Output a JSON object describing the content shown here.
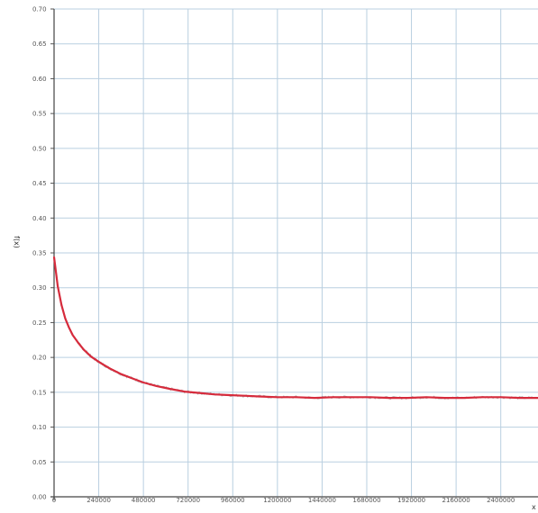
{
  "chart_data": {
    "type": "line",
    "title": "",
    "ylabel": "f(x)",
    "xlabel": "x",
    "xlim": [
      0,
      2600000
    ],
    "ylim": [
      0.0,
      0.7
    ],
    "grid": true,
    "legend": "none",
    "y_ticks": [
      {
        "value": 0.0,
        "label": "0.00"
      },
      {
        "value": 0.05,
        "label": "0.05"
      },
      {
        "value": 0.1,
        "label": "0.10"
      },
      {
        "value": 0.15,
        "label": "0.15"
      },
      {
        "value": 0.2,
        "label": "0.20"
      },
      {
        "value": 0.25,
        "label": "0.25"
      },
      {
        "value": 0.3,
        "label": "0.30"
      },
      {
        "value": 0.35,
        "label": "0.35"
      },
      {
        "value": 0.4,
        "label": "0.40"
      },
      {
        "value": 0.45,
        "label": "0.45"
      },
      {
        "value": 0.5,
        "label": "0.50"
      },
      {
        "value": 0.55,
        "label": "0.55"
      },
      {
        "value": 0.6,
        "label": "0.60"
      },
      {
        "value": 0.65,
        "label": "0.65"
      },
      {
        "value": 0.7,
        "label": "0.70"
      }
    ],
    "x_ticks": [
      {
        "value": 0,
        "label": "0"
      },
      {
        "value": 240000,
        "label": "240000"
      },
      {
        "value": 480000,
        "label": "480000"
      },
      {
        "value": 720000,
        "label": "720000"
      },
      {
        "value": 960000,
        "label": "960000"
      },
      {
        "value": 1200000,
        "label": "1200000"
      },
      {
        "value": 1440000,
        "label": "1440000"
      },
      {
        "value": 1680000,
        "label": "1680000"
      },
      {
        "value": 1920000,
        "label": "1920000"
      },
      {
        "value": 2160000,
        "label": "2160000"
      },
      {
        "value": 2400000,
        "label": "2400000"
      }
    ],
    "series": [
      {
        "color": "#d62b3c",
        "noise_color": "#9a9a9a",
        "x": [
          0,
          20000,
          40000,
          60000,
          80000,
          100000,
          130000,
          160000,
          200000,
          250000,
          300000,
          360000,
          420000,
          480000,
          550000,
          620000,
          700000,
          780000,
          860000,
          940000,
          1020000,
          1100000,
          1200000,
          1300000,
          1400000,
          1500000,
          1600000,
          1700000,
          1800000,
          1900000,
          2000000,
          2100000,
          2200000,
          2300000,
          2400000,
          2500000,
          2600000
        ],
        "y": [
          0.344,
          0.302,
          0.275,
          0.256,
          0.243,
          0.232,
          0.221,
          0.211,
          0.201,
          0.192,
          0.184,
          0.176,
          0.17,
          0.164,
          0.159,
          0.155,
          0.151,
          0.149,
          0.147,
          0.146,
          0.145,
          0.144,
          0.143,
          0.143,
          0.142,
          0.143,
          0.143,
          0.143,
          0.142,
          0.142,
          0.143,
          0.142,
          0.142,
          0.143,
          0.143,
          0.142,
          0.142
        ]
      }
    ]
  }
}
